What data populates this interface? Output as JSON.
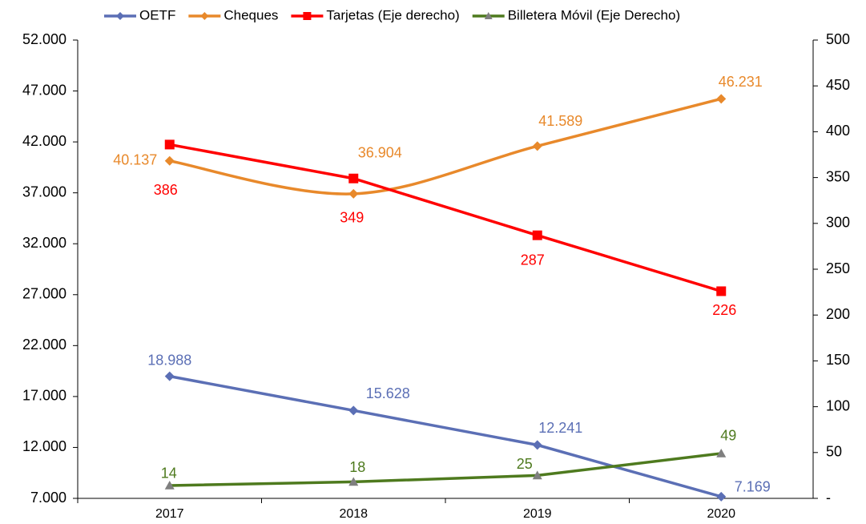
{
  "chart_data": {
    "type": "line",
    "categories": [
      "2017",
      "2018",
      "2019",
      "2020"
    ],
    "ylim": [
      7000,
      52000
    ],
    "yticks": [
      {
        "value": 7000,
        "label": "7.000"
      },
      {
        "value": 12000,
        "label": "12.000"
      },
      {
        "value": 17000,
        "label": "17.000"
      },
      {
        "value": 22000,
        "label": "22.000"
      },
      {
        "value": 27000,
        "label": "27.000"
      },
      {
        "value": 32000,
        "label": "32.000"
      },
      {
        "value": 37000,
        "label": "37.000"
      },
      {
        "value": 42000,
        "label": "42.000"
      },
      {
        "value": 47000,
        "label": "47.000"
      },
      {
        "value": 52000,
        "label": "52.000"
      }
    ],
    "y2lim": [
      0,
      500
    ],
    "y2ticks": [
      {
        "value": 0,
        "label": "-"
      },
      50,
      100,
      150,
      200,
      250,
      300,
      350,
      400,
      450,
      500
    ],
    "legend": "top",
    "series": [
      {
        "name": "OETF",
        "color": "#5b6fb5",
        "marker": "diamond",
        "values": [
          18988,
          15628,
          12241,
          7169
        ],
        "value_labels": [
          "18.988",
          "15.628",
          "12.241",
          "7.169"
        ]
      },
      {
        "name": "Cheques",
        "color": "#e8892b",
        "marker": "diamond",
        "smooth": true,
        "values": [
          40137,
          36904,
          41589,
          46231
        ],
        "value_labels": [
          "40.137",
          "36.904",
          "41.589",
          "46.231"
        ]
      },
      {
        "name": "Tarjetas (Eje derecho)",
        "color": "#ff0000",
        "marker": "square",
        "axis": "y2",
        "values": [
          386,
          349,
          287,
          226
        ]
      },
      {
        "name": "Billetera Móvil (Eje Derecho)",
        "color": "#4e7a1e",
        "marker": "triangle",
        "axis": "y2",
        "values": [
          14,
          18,
          25,
          49
        ]
      }
    ]
  }
}
